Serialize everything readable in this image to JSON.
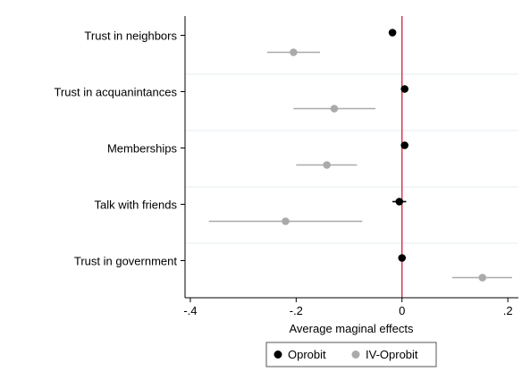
{
  "chart_data": {
    "type": "scatter",
    "subtype": "coefficient-plot-with-confidence-intervals",
    "title": "",
    "xlabel": "Average maginal effects",
    "ylabel": "",
    "xlim": [
      -0.41,
      0.22
    ],
    "x_ticks": [
      -0.4,
      -0.2,
      0,
      0.2
    ],
    "x_tick_labels": [
      "-.4",
      "-.2",
      "0",
      ".2"
    ],
    "reference_line": {
      "x": 0,
      "color": "#d6213a"
    },
    "grid": "horizontal",
    "legend_position": "bottom-center",
    "categories": [
      "Trust in neighbors",
      "Trust in acquanintances",
      "Memberships",
      "Talk with friends",
      "Trust in government"
    ],
    "series": [
      {
        "name": "Oprobit",
        "color": "#000000",
        "estimates": [
          -0.018,
          0.005,
          0.005,
          -0.005,
          0.0
        ],
        "ci_low": [
          -0.024,
          -0.001,
          -0.001,
          -0.018,
          -0.003
        ],
        "ci_high": [
          -0.012,
          0.011,
          0.011,
          0.008,
          0.003
        ]
      },
      {
        "name": "IV-Oprobit",
        "color": "#aaaaaa",
        "estimates": [
          -0.205,
          -0.128,
          -0.142,
          -0.22,
          0.152
        ],
        "ci_low": [
          -0.255,
          -0.205,
          -0.2,
          -0.365,
          0.095
        ],
        "ci_high": [
          -0.155,
          -0.05,
          -0.085,
          -0.075,
          0.208
        ]
      }
    ]
  }
}
